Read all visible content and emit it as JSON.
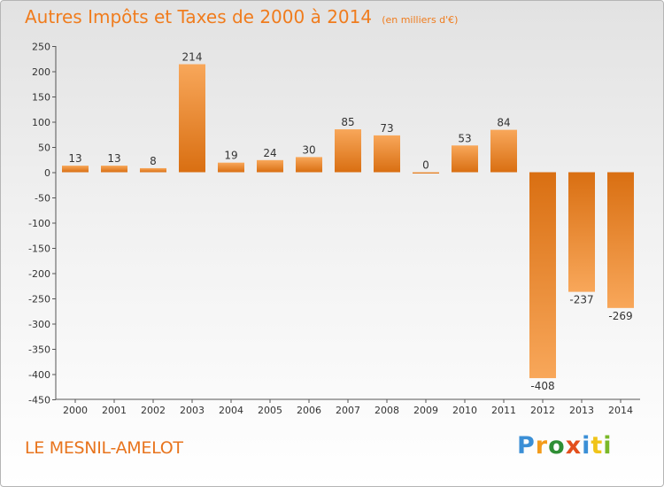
{
  "header": {
    "title": "Autres Impôts et Taxes de 2000 à 2014",
    "subtitle": "(en milliers d'€)"
  },
  "footer": {
    "place": "LE MESNIL-AMELOT",
    "logo": "Proxiti"
  },
  "colors": {
    "title": "#f07c1d",
    "bar_light": "#f8a75a",
    "bar_dark": "#d96f12",
    "axis": "#555555"
  },
  "chart_data": {
    "type": "bar",
    "title": "Autres Impôts et Taxes de 2000 à 2014",
    "subtitle": "(en milliers d'€)",
    "xlabel": "",
    "ylabel": "",
    "categories": [
      "2000",
      "2001",
      "2002",
      "2003",
      "2004",
      "2005",
      "2006",
      "2007",
      "2008",
      "2009",
      "2010",
      "2011",
      "2012",
      "2013",
      "2014"
    ],
    "values": [
      13,
      13,
      8,
      214,
      19,
      24,
      30,
      85,
      73,
      0,
      53,
      84,
      -408,
      -237,
      -269
    ],
    "labels": [
      "13",
      "13",
      "8",
      "214",
      "19",
      "24",
      "30",
      "85",
      "73",
      "0",
      "53",
      "84",
      "-408",
      "-237",
      "-269"
    ],
    "ylim": [
      -450,
      250
    ],
    "yticks": [
      250,
      200,
      150,
      100,
      50,
      0,
      -50,
      -100,
      -150,
      -200,
      -250,
      -300,
      -350,
      -400,
      -450
    ],
    "grid": false,
    "legend": "none"
  }
}
